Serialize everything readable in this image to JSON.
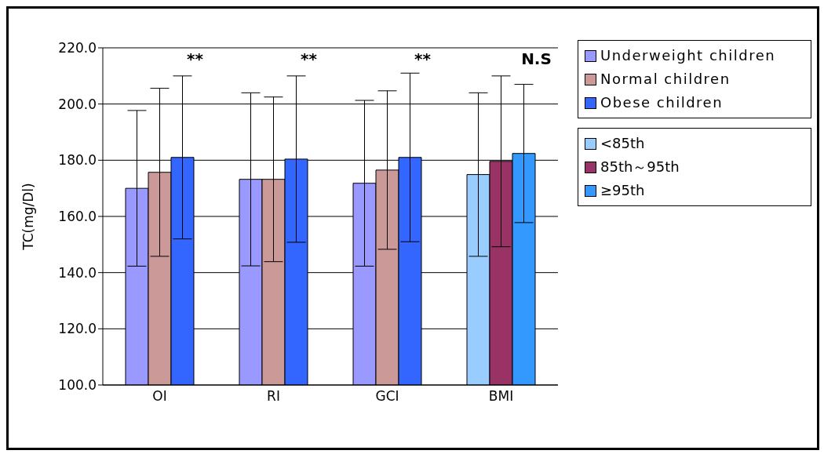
{
  "chart_data": {
    "type": "bar",
    "ylabel": "TC(mg/Dl)",
    "categories": [
      "OI",
      "RI",
      "GCI",
      "BMI"
    ],
    "series": [
      {
        "name": "Underweight children",
        "color": "#9999ff",
        "values": [
          170.0,
          173.2,
          171.8,
          null
        ],
        "errors": [
          27.7,
          30.8,
          29.5,
          null
        ]
      },
      {
        "name": "Normal children",
        "color": "#cc9999",
        "values": [
          175.7,
          173.2,
          176.5,
          null
        ],
        "errors": [
          29.9,
          29.3,
          28.2,
          null
        ]
      },
      {
        "name": "Obese children",
        "color": "#3366ff",
        "values": [
          181.0,
          180.4,
          181.0,
          null
        ],
        "errors": [
          29.0,
          29.6,
          30.0,
          null
        ]
      },
      {
        "name": "<85th",
        "color": "#99ccff",
        "values": [
          null,
          null,
          null,
          174.9
        ],
        "errors": [
          null,
          null,
          null,
          29.1
        ]
      },
      {
        "name": "85th～95th",
        "color": "#993366",
        "values": [
          null,
          null,
          null,
          179.6
        ],
        "errors": [
          null,
          null,
          null,
          30.4
        ]
      },
      {
        "name": "≥95th",
        "color": "#3399ff",
        "values": [
          null,
          null,
          null,
          182.4
        ],
        "errors": [
          null,
          null,
          null,
          24.6
        ]
      }
    ],
    "ylim": [
      100,
      220
    ],
    "yticks": [
      {
        "value": 100,
        "label": "100.0"
      },
      {
        "value": 120,
        "label": "120.0"
      },
      {
        "value": 140,
        "label": "140.0"
      },
      {
        "value": 160,
        "label": "160.0"
      },
      {
        "value": 180,
        "label": "180.0"
      },
      {
        "value": 200,
        "label": "200.0"
      },
      {
        "value": 220,
        "label": "220.0"
      }
    ],
    "grid": "y",
    "legend": "right",
    "annotations": [
      "**",
      "**",
      "**",
      "N.S"
    ]
  }
}
